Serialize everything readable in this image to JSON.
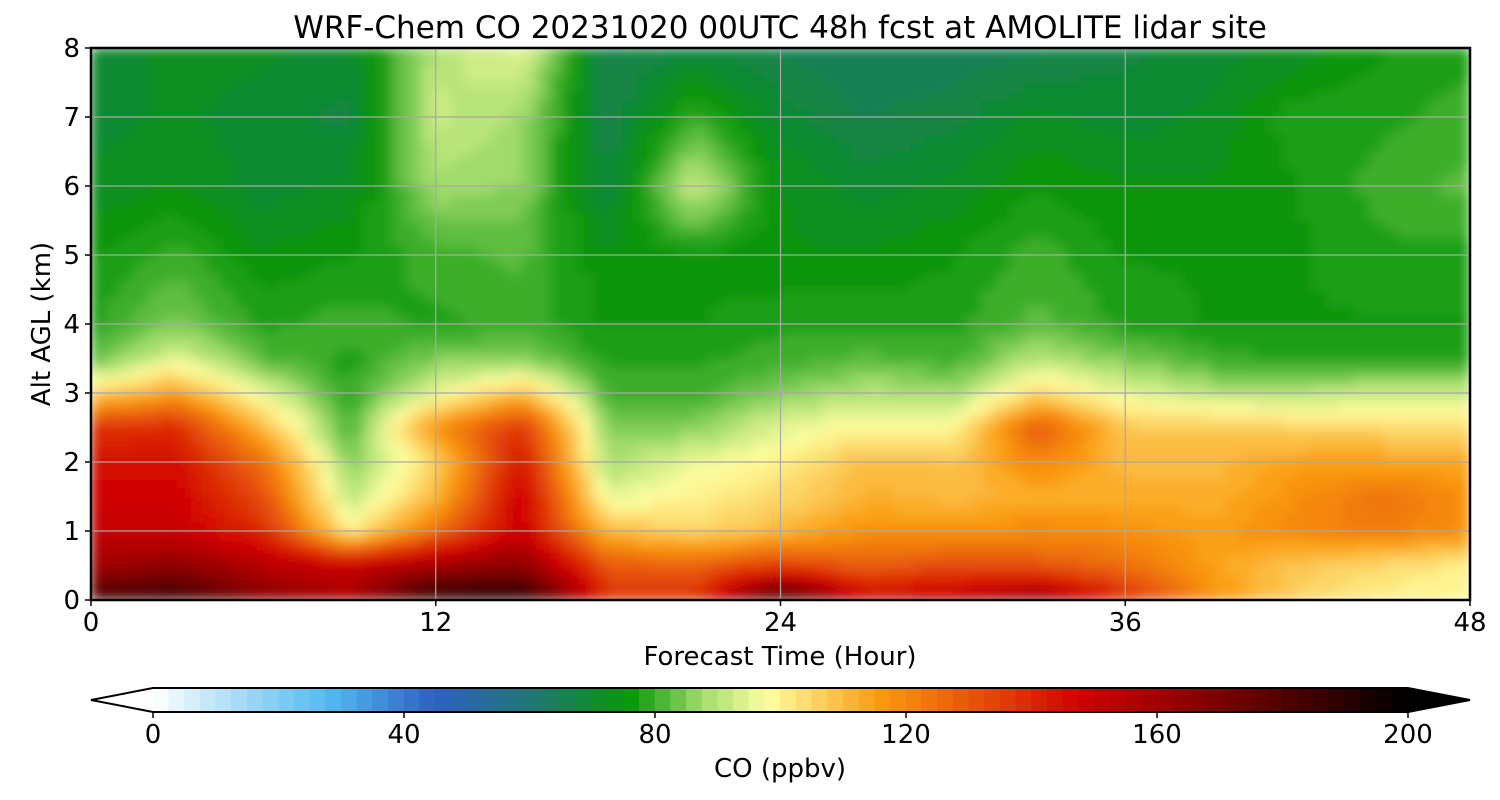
{
  "chart_data": {
    "type": "heatmap",
    "title": "WRF-Chem CO  20231020 00UTC 48h fcst at AMOLITE lidar site",
    "xlabel": "Forecast Time (Hour)",
    "ylabel": "Alt AGL (km)",
    "xlim": [
      0,
      48
    ],
    "ylim": [
      0,
      8
    ],
    "x_ticks": [
      "0",
      "12",
      "24",
      "36",
      "48"
    ],
    "y_ticks": [
      "0",
      "1",
      "2",
      "3",
      "4",
      "5",
      "6",
      "7",
      "8"
    ],
    "grid": true,
    "x": [
      0,
      3,
      6,
      9,
      12,
      15,
      18,
      21,
      24,
      27,
      30,
      33,
      36,
      39,
      42,
      45,
      48
    ],
    "y": [
      0,
      0.5,
      1,
      1.5,
      2,
      2.5,
      3,
      3.5,
      4,
      5,
      6,
      7,
      8
    ],
    "z": [
      [
        185,
        188,
        168,
        158,
        192,
        195,
        140,
        138,
        188,
        150,
        155,
        165,
        140,
        118,
        105,
        100,
        98
      ],
      [
        160,
        165,
        155,
        150,
        160,
        165,
        130,
        128,
        135,
        128,
        132,
        130,
        125,
        115,
        108,
        104,
        100
      ],
      [
        150,
        150,
        140,
        100,
        125,
        150,
        110,
        105,
        110,
        118,
        118,
        120,
        118,
        115,
        120,
        122,
        118
      ],
      [
        148,
        148,
        132,
        90,
        110,
        150,
        95,
        100,
        105,
        112,
        110,
        112,
        113,
        112,
        118,
        125,
        118
      ],
      [
        145,
        145,
        125,
        85,
        105,
        145,
        88,
        96,
        100,
        110,
        108,
        120,
        110,
        110,
        115,
        115,
        113
      ],
      [
        138,
        140,
        110,
        80,
        118,
        138,
        85,
        85,
        95,
        100,
        98,
        130,
        108,
        108,
        105,
        105,
        105
      ],
      [
        105,
        115,
        95,
        78,
        95,
        110,
        80,
        80,
        85,
        90,
        88,
        105,
        95,
        90,
        90,
        92,
        92
      ],
      [
        82,
        95,
        82,
        78,
        85,
        85,
        78,
        78,
        80,
        82,
        80,
        90,
        85,
        80,
        78,
        78,
        78
      ],
      [
        78,
        85,
        78,
        80,
        78,
        80,
        76,
        76,
        78,
        78,
        78,
        82,
        78,
        76,
        76,
        76,
        76
      ],
      [
        76,
        80,
        74,
        76,
        80,
        82,
        74,
        76,
        74,
        74,
        76,
        80,
        76,
        76,
        76,
        78,
        78
      ],
      [
        72,
        74,
        70,
        72,
        88,
        86,
        68,
        92,
        74,
        70,
        72,
        76,
        74,
        74,
        76,
        80,
        82
      ],
      [
        70,
        72,
        70,
        68,
        92,
        88,
        66,
        80,
        70,
        66,
        68,
        72,
        70,
        72,
        78,
        78,
        80
      ],
      [
        70,
        72,
        72,
        70,
        90,
        95,
        66,
        68,
        66,
        64,
        64,
        66,
        68,
        70,
        72,
        76,
        78
      ]
    ],
    "colorbar": {
      "label": "CO  (ppbv)",
      "min": 0,
      "max": 200,
      "ticks": [
        "0",
        "40",
        "80",
        "120",
        "160",
        "200"
      ],
      "extend": "both",
      "stops": [
        [
          0,
          "#ffffff"
        ],
        [
          15,
          "#9fd8f6"
        ],
        [
          28,
          "#52baf0"
        ],
        [
          45,
          "#2e5fc2"
        ],
        [
          62,
          "#1e7a6a"
        ],
        [
          76,
          "#089608"
        ],
        [
          88,
          "#a8de70"
        ],
        [
          98,
          "#fefea0"
        ],
        [
          116,
          "#fa9a10"
        ],
        [
          148,
          "#d00000"
        ],
        [
          170,
          "#7a0000"
        ],
        [
          200,
          "#000000"
        ]
      ]
    }
  }
}
